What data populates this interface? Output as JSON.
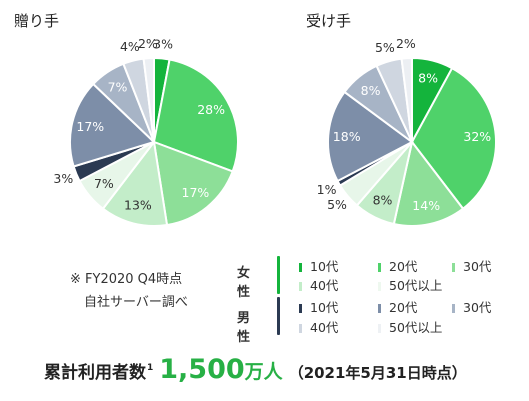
{
  "chart_data": [
    {
      "type": "pie",
      "title": "贈り手",
      "slices": [
        {
          "label": "3%",
          "value": 3,
          "group": "女性",
          "age": "10代",
          "color": "#14b43c"
        },
        {
          "label": "28%",
          "value": 28,
          "group": "女性",
          "age": "20代",
          "color": "#4fd26a"
        },
        {
          "label": "17%",
          "value": 17,
          "group": "女性",
          "age": "30代",
          "color": "#8ddf98"
        },
        {
          "label": "13%",
          "value": 13,
          "group": "女性",
          "age": "40代",
          "color": "#c3edc9"
        },
        {
          "label": "7%",
          "value": 7,
          "group": "女性",
          "age": "50代以上",
          "color": "#e7f6e9"
        },
        {
          "label": "3%",
          "value": 3,
          "group": "男性",
          "age": "10代",
          "color": "#2b3a52"
        },
        {
          "label": "17%",
          "value": 17,
          "group": "男性",
          "age": "20代",
          "color": "#7d8ea8"
        },
        {
          "label": "7%",
          "value": 7,
          "group": "男性",
          "age": "30代",
          "color": "#a7b4c6"
        },
        {
          "label": "4%",
          "value": 4,
          "group": "男性",
          "age": "40代",
          "color": "#cfd6e0"
        },
        {
          "label": "2%",
          "value": 2,
          "group": "男性",
          "age": "50代以上",
          "color": "#eceff3"
        }
      ]
    },
    {
      "type": "pie",
      "title": "受け手",
      "slices": [
        {
          "label": "8%",
          "value": 8,
          "group": "女性",
          "age": "10代",
          "color": "#14b43c"
        },
        {
          "label": "32%",
          "value": 32,
          "group": "女性",
          "age": "20代",
          "color": "#4fd26a"
        },
        {
          "label": "14%",
          "value": 14,
          "group": "女性",
          "age": "30代",
          "color": "#8ddf98"
        },
        {
          "label": "8%",
          "value": 8,
          "group": "女性",
          "age": "40代",
          "color": "#c3edc9"
        },
        {
          "label": "5%",
          "value": 5,
          "group": "女性",
          "age": "50代以上",
          "color": "#e7f6e9"
        },
        {
          "label": "1%",
          "value": 1,
          "group": "男性",
          "age": "10代",
          "color": "#2b3a52"
        },
        {
          "label": "18%",
          "value": 18,
          "group": "男性",
          "age": "20代",
          "color": "#7d8ea8"
        },
        {
          "label": "8%",
          "value": 8,
          "group": "男性",
          "age": "30代",
          "color": "#a7b4c6"
        },
        {
          "label": "5%",
          "value": 5,
          "group": "男性",
          "age": "40代",
          "color": "#cfd6e0"
        },
        {
          "label": "2%",
          "value": 2,
          "group": "男性",
          "age": "50代以上",
          "color": "#eceff3"
        }
      ]
    }
  ],
  "legend": {
    "groups": [
      {
        "name": "女性",
        "bar_color": "#14b43c",
        "items": [
          {
            "label": "10代",
            "color": "#14b43c"
          },
          {
            "label": "20代",
            "color": "#4fd26a"
          },
          {
            "label": "30代",
            "color": "#8ddf98"
          },
          {
            "label": "40代",
            "color": "#c3edc9"
          },
          {
            "label": "50代以上",
            "color": "#eef8ef"
          }
        ]
      },
      {
        "name": "男性",
        "bar_color": "#2b3a52",
        "items": [
          {
            "label": "10代",
            "color": "#2b3a52"
          },
          {
            "label": "20代",
            "color": "#7d8ea8"
          },
          {
            "label": "30代",
            "color": "#a7b4c6"
          },
          {
            "label": "40代",
            "color": "#cfd6e0"
          },
          {
            "label": "50代以上",
            "color": "#eef1f4"
          }
        ]
      }
    ]
  },
  "note": {
    "line1": "※ FY2020 Q4時点",
    "line2": "自社サーバー調べ"
  },
  "footer": {
    "lead": "累計利用者数",
    "footnote": "1",
    "number": "1,500",
    "unit": "万人",
    "date": "（2021年5月31日時点）"
  },
  "colors": {
    "accent_green": "#27b045",
    "inside_label": "#ffffff",
    "outside_label": "#333333"
  }
}
